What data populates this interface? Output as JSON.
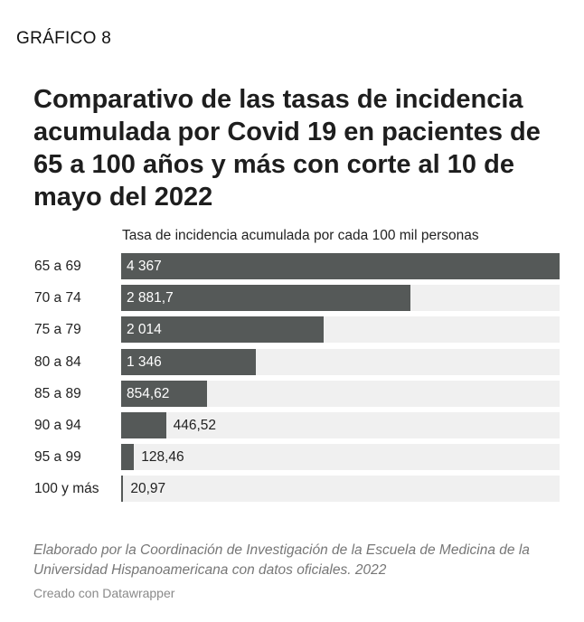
{
  "kicker": "GRÁFICO 8",
  "title": "Comparativo de las tasas de incidencia acumulada por Covid 19 en pacientes de 65 a 100 años y más con corte al 10 de mayo del 2022",
  "notes": "Elaborado por la Coordinación de Investigación de la Escuela de Medicina de la Universidad Hispanoamericana con datos oficiales. 2022",
  "credit": "Creado con Datawrapper",
  "colors": {
    "bar": "#555958",
    "track": "#f0f0f0",
    "label_inside": "#ffffff",
    "label_outside": "#222222"
  },
  "chart_data": {
    "type": "bar",
    "orientation": "horizontal",
    "xlabel": "Tasa de incidencia acumulada por cada 100 mil personas",
    "xlim": [
      0,
      4367
    ],
    "categories": [
      "65 a 69",
      "70 a 74",
      "75 a 79",
      "80 a 84",
      "85 a 89",
      "90 a 94",
      "95 a 99",
      "100 y más"
    ],
    "values": [
      4367,
      2881.7,
      2014,
      1346,
      854.62,
      446.52,
      128.46,
      20.97
    ],
    "value_labels": [
      "4 367",
      "2 881,7",
      "2 014",
      "1 346",
      "854,62",
      "446,52",
      "128,46",
      "20,97"
    ]
  }
}
